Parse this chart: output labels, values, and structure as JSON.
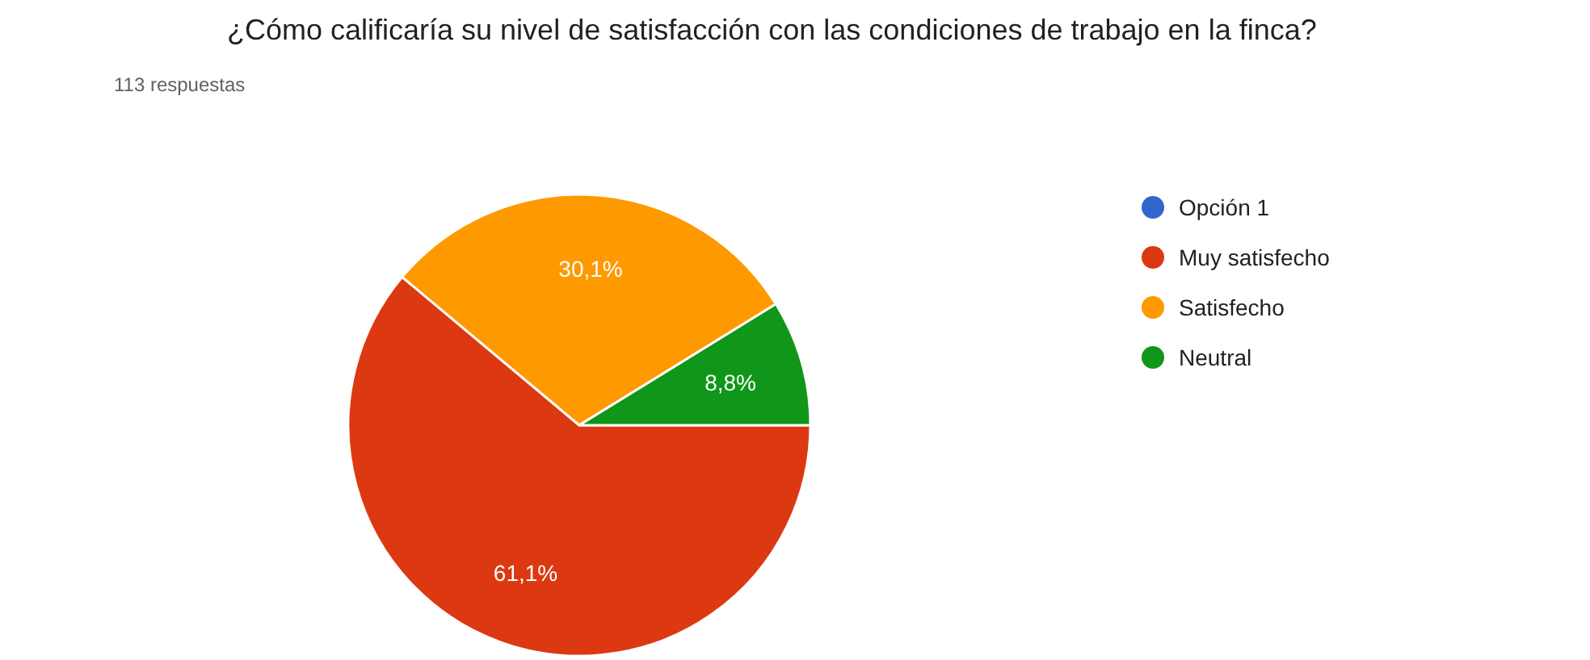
{
  "chart_data": {
    "type": "pie",
    "title": "¿Cómo calificaría su nivel de satisfacción con las condiciones de trabajo en la finca?",
    "subtitle": "113 respuestas",
    "categories": [
      "Opción 1",
      "Muy satisfecho",
      "Satisfecho",
      "Neutral"
    ],
    "values": [
      0,
      61.1,
      30.1,
      8.8
    ],
    "colors": [
      "#3366cc",
      "#dc3912",
      "#ff9900",
      "#109618"
    ],
    "value_labels": [
      null,
      "61,1%",
      "30,1%",
      "8,8%"
    ],
    "legend": "right"
  }
}
